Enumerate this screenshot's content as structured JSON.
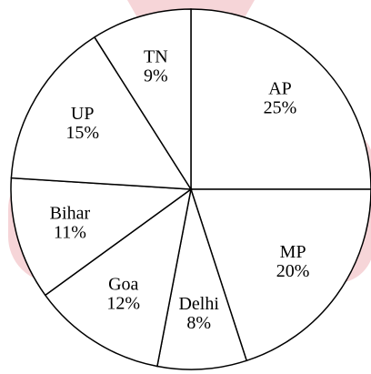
{
  "chart_data": {
    "type": "pie",
    "categories": [
      "AP",
      "MP",
      "Delhi",
      "Goa",
      "Bihar",
      "UP",
      "TN"
    ],
    "values": [
      25,
      20,
      8,
      12,
      11,
      15,
      9
    ],
    "value_labels": [
      "25%",
      "20%",
      "8%",
      "12%",
      "11%",
      "15%",
      "9%"
    ],
    "color": "#ffffff"
  }
}
